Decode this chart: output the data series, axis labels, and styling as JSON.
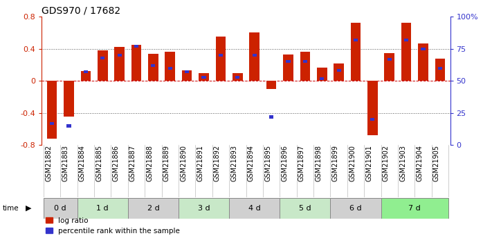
{
  "title": "GDS970 / 17682",
  "samples": [
    "GSM21882",
    "GSM21883",
    "GSM21884",
    "GSM21885",
    "GSM21886",
    "GSM21887",
    "GSM21888",
    "GSM21889",
    "GSM21890",
    "GSM21891",
    "GSM21892",
    "GSM21893",
    "GSM21894",
    "GSM21895",
    "GSM21896",
    "GSM21897",
    "GSM21898",
    "GSM21899",
    "GSM21900",
    "GSM21901",
    "GSM21902",
    "GSM21903",
    "GSM21904",
    "GSM21905"
  ],
  "log_ratio": [
    -0.72,
    -0.44,
    0.12,
    0.38,
    0.42,
    0.45,
    0.34,
    0.36,
    0.13,
    0.1,
    0.55,
    0.1,
    0.6,
    -0.1,
    0.33,
    0.36,
    0.17,
    0.22,
    0.72,
    -0.68,
    0.35,
    0.72,
    0.47,
    0.28
  ],
  "percentile": [
    17,
    15,
    57,
    68,
    70,
    77,
    62,
    60,
    57,
    53,
    70,
    53,
    70,
    22,
    65,
    65,
    52,
    58,
    82,
    20,
    67,
    82,
    75,
    60
  ],
  "time_groups": [
    {
      "label": "0 d",
      "start": 0,
      "end": 2,
      "color": "#d0d0d0"
    },
    {
      "label": "1 d",
      "start": 2,
      "end": 5,
      "color": "#c8e8c8"
    },
    {
      "label": "2 d",
      "start": 5,
      "end": 8,
      "color": "#d0d0d0"
    },
    {
      "label": "3 d",
      "start": 8,
      "end": 11,
      "color": "#c8e8c8"
    },
    {
      "label": "4 d",
      "start": 11,
      "end": 14,
      "color": "#d0d0d0"
    },
    {
      "label": "5 d",
      "start": 14,
      "end": 17,
      "color": "#c8e8c8"
    },
    {
      "label": "6 d",
      "start": 17,
      "end": 20,
      "color": "#d0d0d0"
    },
    {
      "label": "7 d",
      "start": 20,
      "end": 24,
      "color": "#90ee90"
    }
  ],
  "ylim": [
    -0.8,
    0.8
  ],
  "y2lim": [
    0,
    100
  ],
  "bar_color": "#cc2200",
  "pct_color": "#3333cc",
  "dotted_color": "#555555",
  "zero_line_color": "#cc0000",
  "bg_color": "#ffffff",
  "title_fontsize": 10,
  "tick_fontsize": 6,
  "legend_fontsize": 7.5
}
